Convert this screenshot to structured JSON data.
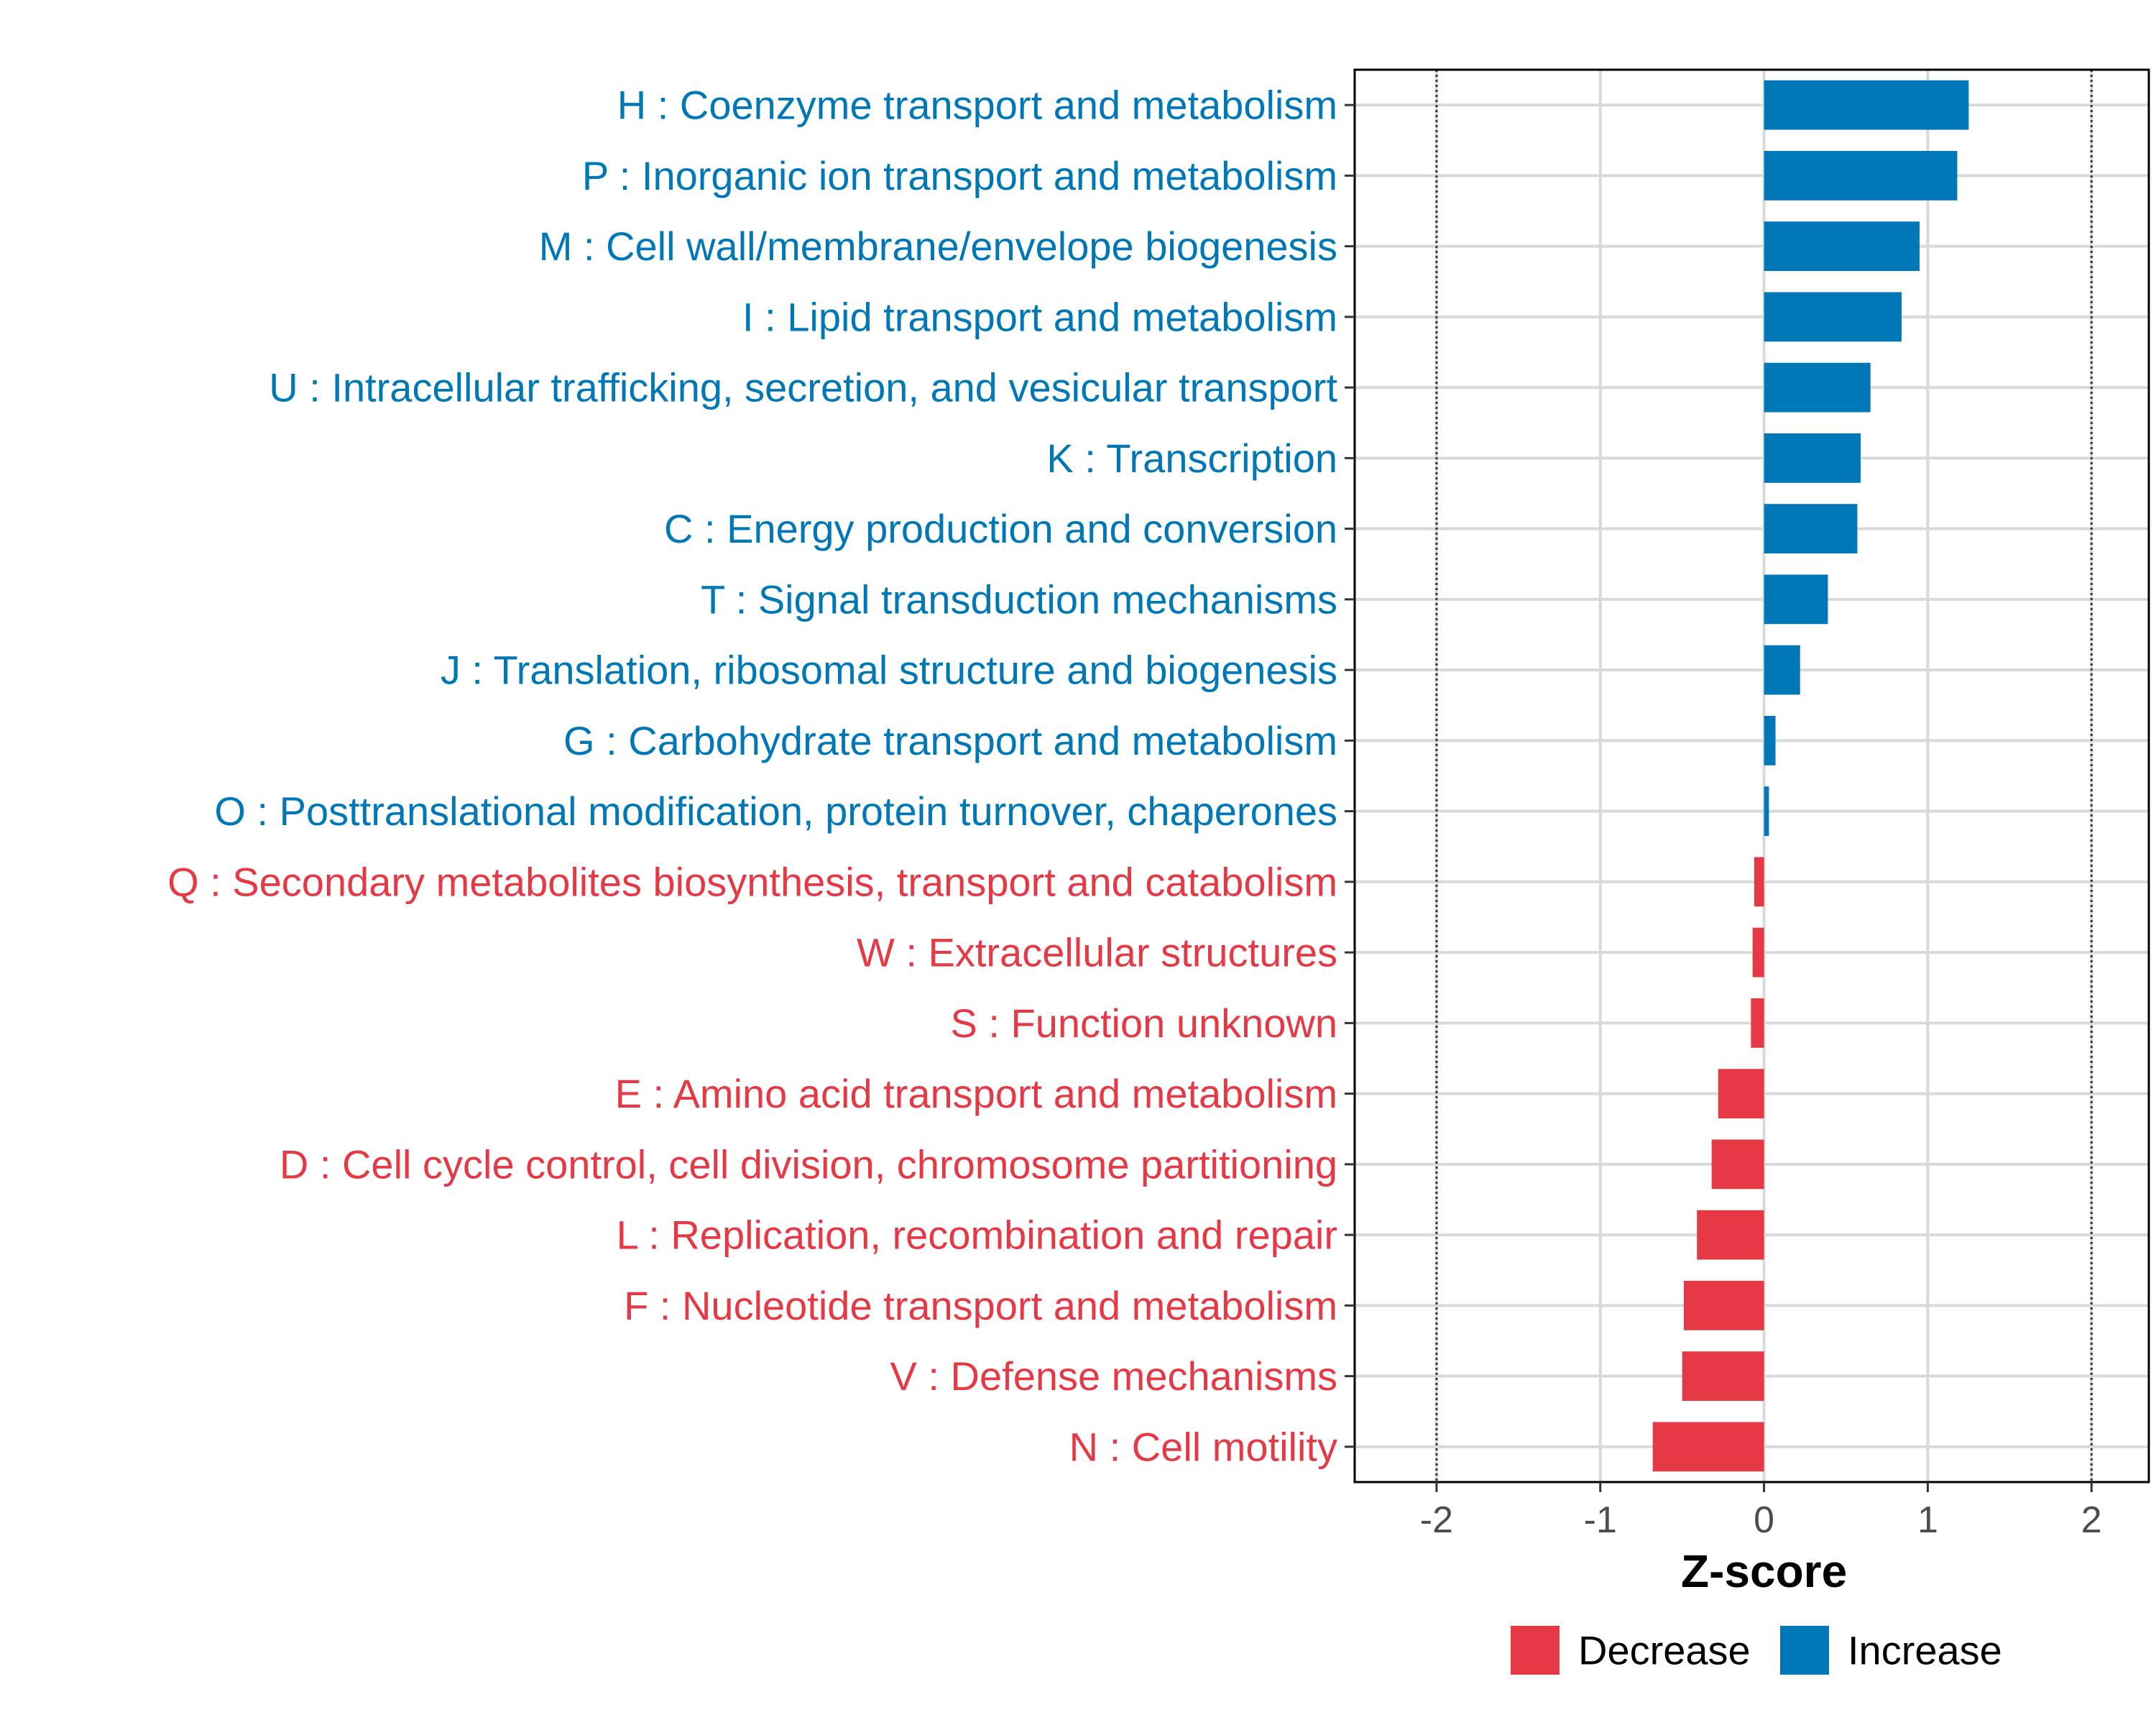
{
  "chart_data": {
    "type": "bar",
    "orientation": "horizontal",
    "title": "",
    "xlabel": "Z-score",
    "ylabel": "",
    "xlim": [
      -2.5,
      2.35
    ],
    "xticks": [
      -2,
      -1,
      0,
      1,
      2
    ],
    "xtick_labels": [
      "-2",
      "-1",
      "0",
      "1",
      "2"
    ],
    "reference_lines": [
      -2,
      2
    ],
    "grid": true,
    "legend_position": "bottom",
    "categories": [
      "H : Coenzyme transport and metabolism",
      "P : Inorganic ion transport and metabolism",
      "M : Cell wall/membrane/envelope biogenesis",
      "I : Lipid transport and metabolism",
      "U : Intracellular trafficking, secretion, and vesicular transport",
      "K : Transcription",
      "C : Energy production and conversion",
      "T : Signal transduction mechanisms",
      "J : Translation, ribosomal structure and biogenesis",
      "G : Carbohydrate transport and metabolism",
      "O : Posttranslational modification, protein turnover, chaperones",
      "Q : Secondary metabolites biosynthesis, transport and catabolism",
      "W : Extracellular structures",
      "S : Function unknown",
      "E : Amino acid transport and metabolism",
      "D : Cell cycle control, cell division, chromosome partitioning",
      "L : Replication, recombination and repair",
      "F : Nucleotide transport and metabolism",
      "V : Defense mechanisms",
      "N : Cell motility"
    ],
    "values": [
      1.25,
      1.18,
      0.95,
      0.84,
      0.65,
      0.59,
      0.57,
      0.39,
      0.22,
      0.07,
      0.03,
      -0.06,
      -0.07,
      -0.08,
      -0.28,
      -0.32,
      -0.41,
      -0.49,
      -0.5,
      -0.68
    ],
    "groups": [
      "Increase",
      "Increase",
      "Increase",
      "Increase",
      "Increase",
      "Increase",
      "Increase",
      "Increase",
      "Increase",
      "Increase",
      "Increase",
      "Decrease",
      "Decrease",
      "Decrease",
      "Decrease",
      "Decrease",
      "Decrease",
      "Decrease",
      "Decrease",
      "Decrease"
    ],
    "legend": [
      {
        "name": "Decrease",
        "color": "#e63946"
      },
      {
        "name": "Increase",
        "color": "#0077b6"
      }
    ],
    "colors": {
      "Increase": "#0077b6",
      "Decrease": "#e63946"
    }
  }
}
